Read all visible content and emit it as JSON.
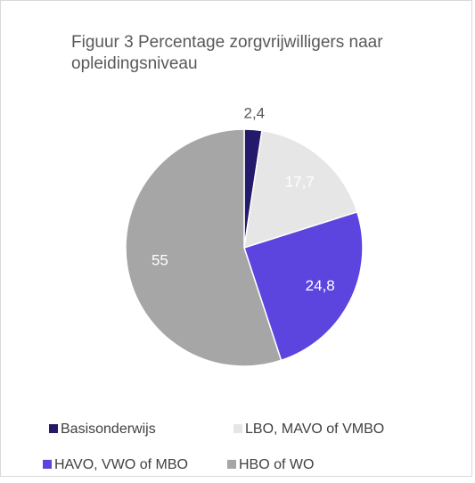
{
  "chart_data": {
    "type": "pie",
    "title": "Figuur 3 Percentage zorgvrijwilligers naar opleidingsniveau",
    "categories": [
      "Basisonderwijs",
      "LBO, MAVO of VMBO",
      "HAVO, VWO of MBO",
      "HBO of WO"
    ],
    "values": [
      2.4,
      17.7,
      24.8,
      55
    ],
    "value_labels": [
      "2,4",
      "17,7",
      "24,8",
      "55"
    ],
    "colors": [
      "#241a6b",
      "#e6e6e6",
      "#5b45de",
      "#a6a6a6"
    ],
    "legend": "bottom"
  }
}
